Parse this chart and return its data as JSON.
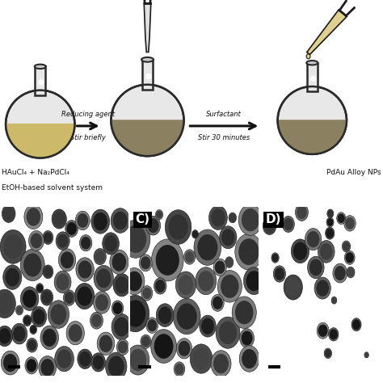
{
  "background_color": "#ffffff",
  "flask1_liquid_color": "#cdb96a",
  "flask2_liquid_color": "#8b8060",
  "flask3_liquid_color": "#8b8060",
  "flask_glass_color": "#e8e8e8",
  "flask_outline_color": "#2a2a2a",
  "flask_neck_color": "#c8c8c8",
  "arrow_color": "#111111",
  "arrow1_label_top": "Reducing agent",
  "arrow1_label_bottom": "Stir briefly",
  "arrow2_label_top": "Surfactant",
  "arrow2_label_bottom": "Stir 30 minutes",
  "label_left_line1": "HAuCl₄ + Na₂PdCl₄",
  "label_left_line2": "EtOH-based solvent system",
  "label_right": "PdAu Alloy NPs",
  "panel_c_label": "C)",
  "panel_d_label": "D)",
  "font_size_labels": 6.5,
  "font_size_arrows": 6.0,
  "font_size_panel": 11,
  "tem_b_bg": "#888888",
  "tem_c_bg": "#b8b8b8",
  "tem_d_bg": "#c8c8c8"
}
